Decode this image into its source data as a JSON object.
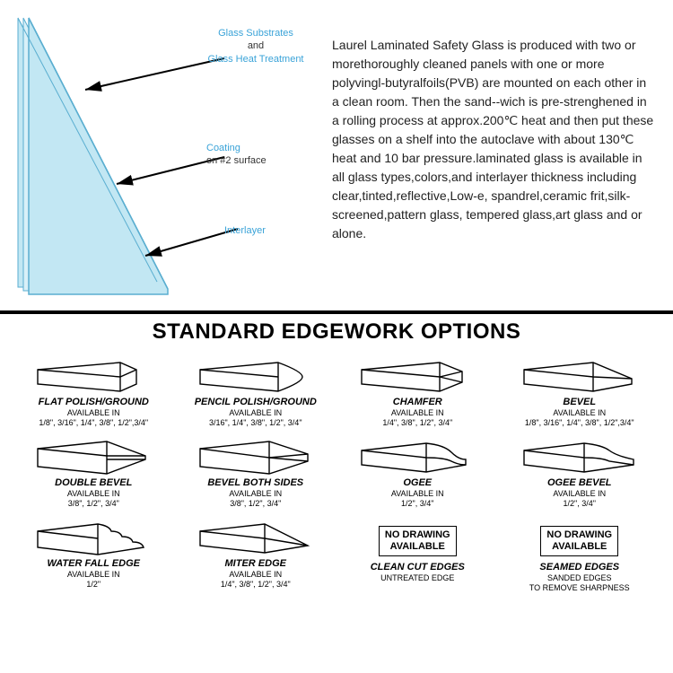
{
  "diagram": {
    "labels": {
      "glass_sub": "Glass Substrates",
      "and": "and",
      "heat_treat": "Glass Heat Treatment",
      "coating_l1": "Coating",
      "coating_l2": "on #2 surface",
      "interlayer": "Interlayer"
    },
    "glass_fill": "#c2e7f3",
    "glass_stroke": "#5aaed0",
    "arrow_color": "#000000"
  },
  "description": "Laurel Laminated Safety Glass is produced with two or morethoroughly cleaned panels with one or more polyvingl-butyralfoils(PVB) are mounted on each other in a clean room. Then the sand--wich is pre-strenghened in a rolling process at approx.200℃ heat and then put these glasses on a shelf into the autoclave with about 130℃ heat and 10 bar pressure.laminated glass is available in all glass types,colors,and interlayer thickness including clear,tinted,reflective,Low-e, spandrel,ceramic frit,silk-screened,pattern glass, tempered glass,art glass and or alone.",
  "edgework": {
    "title": "STANDARD EDGEWORK OPTIONS",
    "available_label": "AVAILABLE IN",
    "no_drawing": "NO DRAWING\nAVAILABLE",
    "items": [
      {
        "name": "FLAT POLISH/GROUND",
        "sizes": "1/8\", 3/16\", 1/4\", 3/8\", 1/2\",3/4\"",
        "shape": "flat"
      },
      {
        "name": "PENCIL POLISH/GROUND",
        "sizes": "3/16\", 1/4\", 3/8\", 1/2\", 3/4\"",
        "shape": "pencil"
      },
      {
        "name": "CHAMFER",
        "sizes": "1/4\", 3/8\", 1/2\", 3/4\"",
        "shape": "chamfer"
      },
      {
        "name": "BEVEL",
        "sizes": "1/8\", 3/16\", 1/4\", 3/8\", 1/2\",3/4\"",
        "shape": "bevel"
      },
      {
        "name": "DOUBLE BEVEL",
        "sizes": "3/8\", 1/2\", 3/4\"",
        "shape": "dbevel"
      },
      {
        "name": "BEVEL BOTH SIDES",
        "sizes": "3/8\", 1/2\", 3/4\"",
        "shape": "bboth"
      },
      {
        "name": "OGEE",
        "sizes": "1/2\", 3/4\"",
        "shape": "ogee"
      },
      {
        "name": "OGEE BEVEL",
        "sizes": "1/2\", 3/4\"",
        "shape": "ogeeb"
      },
      {
        "name": "WATER FALL EDGE",
        "sizes": "1/2\"",
        "shape": "waterfall"
      },
      {
        "name": "MITER EDGE",
        "sizes": "1/4\", 3/8\", 1/2\", 3/4\"",
        "shape": "miter"
      },
      {
        "name": "CLEAN CUT EDGES",
        "sub": "UNTREATED EDGE",
        "shape": "none"
      },
      {
        "name": "SEAMED EDGES",
        "sub": "SANDED EDGES\nTO REMOVE SHARPNESS",
        "shape": "none"
      }
    ]
  }
}
